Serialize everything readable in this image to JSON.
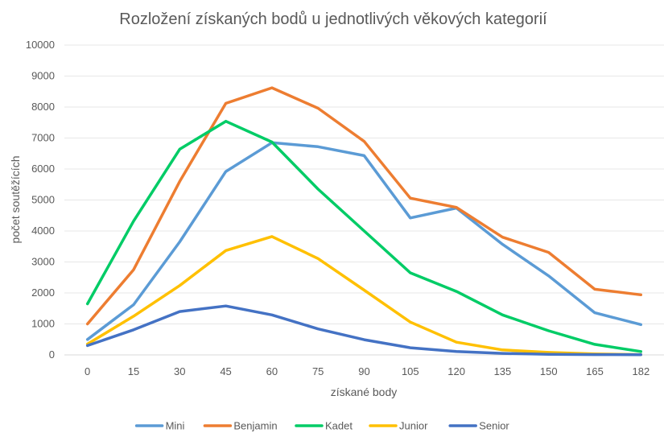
{
  "chart_data": {
    "type": "line",
    "title": "Rozložení získaných bodů u jednotlivých věkových kategorií",
    "xlabel": "získané body",
    "ylabel": "počet soutěžících",
    "categories": [
      "0",
      "15",
      "30",
      "45",
      "60",
      "75",
      "90",
      "105",
      "120",
      "135",
      "150",
      "165",
      "182"
    ],
    "ylim": [
      0,
      10000
    ],
    "yticks": [
      0,
      1000,
      2000,
      3000,
      4000,
      5000,
      6000,
      7000,
      8000,
      9000,
      10000
    ],
    "grid": true,
    "legend_position": "bottom",
    "series": [
      {
        "name": "Mini",
        "color": "#5b9bd5",
        "values": [
          500,
          1620,
          3650,
          5920,
          6850,
          6720,
          6430,
          4420,
          4740,
          3570,
          2550,
          1360,
          980
        ]
      },
      {
        "name": "Benjamin",
        "color": "#ed7d31",
        "values": [
          1000,
          2750,
          5600,
          8120,
          8620,
          7960,
          6890,
          5060,
          4760,
          3800,
          3310,
          2120,
          1940
        ]
      },
      {
        "name": "Kadet",
        "color": "#00cc66",
        "values": [
          1650,
          4320,
          6640,
          7540,
          6870,
          5350,
          4000,
          2650,
          2050,
          1290,
          780,
          340,
          110
        ]
      },
      {
        "name": "Junior",
        "color": "#ffc000",
        "values": [
          350,
          1250,
          2240,
          3370,
          3820,
          3110,
          2090,
          1060,
          410,
          160,
          80,
          30,
          10
        ]
      },
      {
        "name": "Senior",
        "color": "#4472c4",
        "values": [
          300,
          810,
          1400,
          1580,
          1290,
          840,
          490,
          230,
          110,
          50,
          20,
          10,
          5
        ]
      }
    ]
  }
}
